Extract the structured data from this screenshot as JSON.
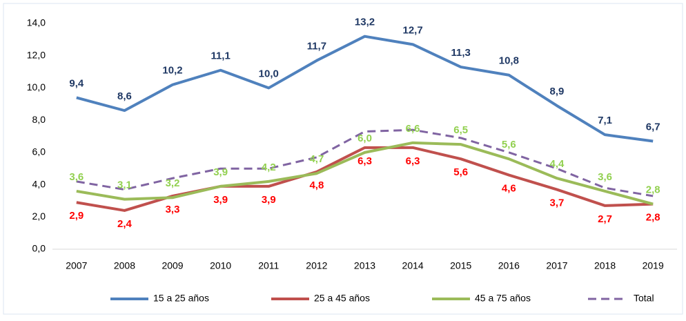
{
  "chart_data": {
    "type": "line",
    "categories": [
      "2007",
      "2008",
      "2009",
      "2010",
      "2011",
      "2012",
      "2013",
      "2014",
      "2015",
      "2016",
      "2017",
      "2018",
      "2019"
    ],
    "series": [
      {
        "name": "15 a 25 años",
        "color": "#4f81bd",
        "label_color": "#1f3864",
        "values": [
          9.4,
          8.6,
          10.2,
          11.1,
          10.0,
          11.7,
          13.2,
          12.7,
          11.3,
          10.8,
          8.9,
          7.1,
          6.7
        ],
        "value_labels": [
          "9,4",
          "8,6",
          "10,2",
          "11,1",
          "10,0",
          "11,7",
          "13,2",
          "12,7",
          "11,3",
          "10,8",
          "8,9",
          "7,1",
          "6,7"
        ]
      },
      {
        "name": "25 a 45 años",
        "color": "#c0504d",
        "label_color": "#ff0000",
        "values": [
          2.9,
          2.4,
          3.3,
          3.9,
          3.9,
          4.8,
          6.3,
          6.3,
          5.6,
          4.6,
          3.7,
          2.7,
          2.8
        ],
        "value_labels": [
          "2,9",
          "2,4",
          "3,3",
          "3,9",
          "3,9",
          "4,8",
          "6,3",
          "6,3",
          "5,6",
          "4,6",
          "3,7",
          "2,7",
          "2,8"
        ]
      },
      {
        "name": "45 a 75 años",
        "color": "#9bbb59",
        "label_color": "#92d050",
        "values": [
          3.6,
          3.1,
          3.2,
          3.9,
          4.2,
          4.7,
          6.0,
          6.6,
          6.5,
          5.6,
          4.4,
          3.6,
          2.8
        ],
        "value_labels": [
          "3,6",
          "3,1",
          "3,2",
          "3,9",
          "4,2",
          "4,7",
          "6,0",
          "6,6",
          "6,5",
          "5,6",
          "4,4",
          "3,6",
          "2,8"
        ]
      },
      {
        "name": "Total",
        "color": "#8064a2",
        "dashed": true,
        "values": [
          4.2,
          3.7,
          4.4,
          5.0,
          5.0,
          5.7,
          7.3,
          7.4,
          6.9,
          6.0,
          5.0,
          3.8,
          3.3
        ]
      }
    ],
    "ylim": [
      0,
      14
    ],
    "yticks": [
      {
        "value": 0,
        "label": "0,0"
      },
      {
        "value": 2,
        "label": "2,0"
      },
      {
        "value": 4,
        "label": "4,0"
      },
      {
        "value": 6,
        "label": "6,0"
      },
      {
        "value": 8,
        "label": "8,0"
      },
      {
        "value": 10,
        "label": "10,0"
      },
      {
        "value": 12,
        "label": "12,0"
      },
      {
        "value": 14,
        "label": "14,0"
      }
    ],
    "grid": false,
    "legend": "bottom"
  }
}
